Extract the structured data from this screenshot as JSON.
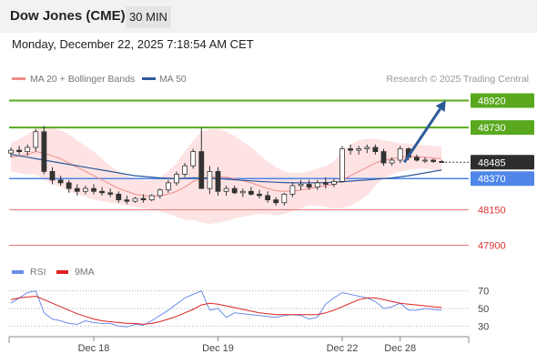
{
  "header": {
    "title": "Dow Jones (CME)",
    "timeframe": "30 MIN",
    "datetime": "Monday, December 22, 2025 7:18:54 AM CET"
  },
  "colors": {
    "resistance": "#5aa81e",
    "support": "#4f86e8",
    "bollinger_band": "#fde3e3",
    "ma20": "#f28b8b",
    "ma50": "#2e5a9a",
    "pivot": "#2d2d2d",
    "target_levels": "#e87878",
    "arrow": "#2e5a9a",
    "rsi": "#6a8ee8",
    "rsi_ma": "#dd2222"
  },
  "chart_data": [
    {
      "type": "candlestick",
      "legend": [
        "MA 20 + Bollinger Bands",
        "MA 50"
      ],
      "legend_position": "top-left",
      "credit": "Research © 2025 Trading Central",
      "ylim": [
        47820,
        49000
      ],
      "levels": [
        {
          "value": 48920,
          "label": "48920",
          "kind": "resistance"
        },
        {
          "value": 48730,
          "label": "48730",
          "kind": "resistance"
        },
        {
          "value": 48485,
          "label": "48485",
          "kind": "pivot"
        },
        {
          "value": 48370,
          "label": "48370",
          "kind": "support"
        },
        {
          "value": 48150,
          "label": "48150",
          "kind": "target"
        },
        {
          "value": 47900,
          "label": "47900",
          "kind": "target"
        }
      ],
      "forecast_arrow": {
        "from_bar": 47.5,
        "from": 48485,
        "to_bar": 52.5,
        "to": 48920
      },
      "x_bars": 53,
      "bars": [
        [
          48550,
          48590,
          48520,
          48570
        ],
        [
          48570,
          48600,
          48540,
          48560
        ],
        [
          48560,
          48610,
          48530,
          48590
        ],
        [
          48590,
          48720,
          48560,
          48700
        ],
        [
          48700,
          48740,
          48400,
          48420
        ],
        [
          48420,
          48450,
          48330,
          48360
        ],
        [
          48360,
          48390,
          48320,
          48340
        ],
        [
          48340,
          48360,
          48270,
          48300
        ],
        [
          48300,
          48330,
          48250,
          48280
        ],
        [
          48280,
          48320,
          48260,
          48300
        ],
        [
          48300,
          48330,
          48260,
          48280
        ],
        [
          48280,
          48310,
          48250,
          48270
        ],
        [
          48270,
          48300,
          48240,
          48260
        ],
        [
          48260,
          48280,
          48200,
          48220
        ],
        [
          48220,
          48250,
          48190,
          48210
        ],
        [
          48210,
          48240,
          48200,
          48230
        ],
        [
          48230,
          48260,
          48200,
          48220
        ],
        [
          48220,
          48260,
          48210,
          48250
        ],
        [
          48250,
          48300,
          48230,
          48290
        ],
        [
          48290,
          48360,
          48270,
          48340
        ],
        [
          48340,
          48420,
          48320,
          48400
        ],
        [
          48400,
          48480,
          48380,
          48460
        ],
        [
          48460,
          48580,
          48440,
          48560
        ],
        [
          48560,
          48730,
          48300,
          48300
        ],
        [
          48300,
          48460,
          48260,
          48420
        ],
        [
          48420,
          48450,
          48250,
          48280
        ],
        [
          48280,
          48320,
          48250,
          48300
        ],
        [
          48300,
          48320,
          48260,
          48270
        ],
        [
          48270,
          48300,
          48240,
          48280
        ],
        [
          48280,
          48310,
          48250,
          48260
        ],
        [
          48260,
          48290,
          48230,
          48250
        ],
        [
          48250,
          48280,
          48200,
          48220
        ],
        [
          48220,
          48240,
          48180,
          48200
        ],
        [
          48200,
          48270,
          48180,
          48260
        ],
        [
          48260,
          48340,
          48240,
          48320
        ],
        [
          48320,
          48360,
          48290,
          48330
        ],
        [
          48330,
          48360,
          48290,
          48310
        ],
        [
          48310,
          48360,
          48290,
          48340
        ],
        [
          48340,
          48380,
          48300,
          48330
        ],
        [
          48330,
          48370,
          48310,
          48350
        ],
        [
          48350,
          48600,
          48340,
          48580
        ],
        [
          48580,
          48610,
          48540,
          48570
        ],
        [
          48570,
          48600,
          48540,
          48580
        ],
        [
          48580,
          48610,
          48550,
          48590
        ],
        [
          48590,
          48610,
          48540,
          48560
        ],
        [
          48560,
          48580,
          48460,
          48480
        ],
        [
          48480,
          48520,
          48460,
          48500
        ],
        [
          48500,
          48600,
          48480,
          48580
        ],
        [
          48580,
          48590,
          48500,
          48520
        ],
        [
          48520,
          48540,
          48490,
          48500
        ],
        [
          48500,
          48520,
          48480,
          48500
        ],
        [
          48500,
          48510,
          48480,
          48490
        ],
        [
          48490,
          48500,
          48480,
          48485
        ]
      ],
      "ma20": [
        48520,
        48530,
        48540,
        48560,
        48550,
        48530,
        48510,
        48480,
        48450,
        48420,
        48390,
        48360,
        48330,
        48300,
        48280,
        48260,
        48250,
        48245,
        48250,
        48260,
        48280,
        48310,
        48350,
        48370,
        48380,
        48385,
        48380,
        48370,
        48355,
        48340,
        48320,
        48300,
        48285,
        48280,
        48282,
        48290,
        48300,
        48310,
        48320,
        48330,
        48360,
        48390,
        48420,
        48450,
        48480,
        48500,
        48510,
        48520,
        48525,
        48525,
        48520,
        48515,
        48510
      ],
      "ma50": [
        48540,
        48530,
        48520,
        48510,
        48500,
        48490,
        48480,
        48470,
        48460,
        48450,
        48440,
        48430,
        48420,
        48410,
        48400,
        48390,
        48385,
        48380,
        48375,
        48372,
        48370,
        48372,
        48375,
        48375,
        48373,
        48370,
        48366,
        48362,
        48358,
        48354,
        48350,
        48347,
        48344,
        48342,
        48340,
        48340,
        48340,
        48341,
        48342,
        48344,
        48348,
        48352,
        48356,
        48360,
        48365,
        48370,
        48375,
        48382,
        48390,
        48400,
        48410,
        48420,
        48430
      ],
      "bb_upper": [
        48620,
        48650,
        48680,
        48720,
        48740,
        48730,
        48710,
        48680,
        48640,
        48600,
        48560,
        48510,
        48460,
        48420,
        48390,
        48370,
        48360,
        48360,
        48380,
        48420,
        48480,
        48560,
        48640,
        48700,
        48720,
        48720,
        48700,
        48670,
        48630,
        48590,
        48540,
        48490,
        48450,
        48420,
        48410,
        48410,
        48420,
        48440,
        48460,
        48490,
        48560,
        48610,
        48640,
        48650,
        48650,
        48640,
        48630,
        48620,
        48615,
        48610,
        48605,
        48600,
        48595
      ],
      "bb_lower": [
        48420,
        48410,
        48400,
        48400,
        48360,
        48330,
        48310,
        48280,
        48260,
        48240,
        48220,
        48210,
        48200,
        48190,
        48180,
        48170,
        48160,
        48150,
        48140,
        48120,
        48100,
        48080,
        48080,
        48060,
        48050,
        48060,
        48070,
        48090,
        48100,
        48110,
        48120,
        48120,
        48110,
        48120,
        48140,
        48160,
        48180,
        48180,
        48170,
        48160,
        48160,
        48180,
        48210,
        48250,
        48320,
        48370,
        48400,
        48420,
        48430,
        48440,
        48440,
        48430,
        48430
      ],
      "x_tick_labels": [
        {
          "bar": 10,
          "label": "Dec 18"
        },
        {
          "bar": 25,
          "label": "Dec 19"
        },
        {
          "bar": 40,
          "label": "Dec 22"
        },
        {
          "bar": 47,
          "label": "Dec 28"
        }
      ]
    },
    {
      "type": "line",
      "legend": [
        "RSI",
        "9MA"
      ],
      "legend_position": "top-left",
      "ylim": [
        20,
        80
      ],
      "y_ticks": [
        70,
        50,
        30
      ],
      "series": [
        {
          "name": "RSI",
          "values": [
            56,
            62,
            68,
            70,
            45,
            38,
            36,
            33,
            32,
            36,
            34,
            33,
            33,
            30,
            29,
            32,
            31,
            36,
            42,
            48,
            55,
            62,
            66,
            70,
            48,
            50,
            40,
            45,
            44,
            43,
            42,
            41,
            40,
            42,
            43,
            42,
            38,
            40,
            55,
            62,
            68,
            66,
            64,
            62,
            58,
            50,
            52,
            56,
            48,
            48,
            50,
            49,
            48
          ]
        },
        {
          "name": "9MA",
          "values": [
            60,
            62,
            63,
            64,
            60,
            56,
            52,
            48,
            44,
            41,
            38,
            36,
            35,
            34,
            33,
            33,
            32,
            33,
            35,
            38,
            41,
            45,
            49,
            54,
            56,
            55,
            53,
            51,
            49,
            47,
            45,
            44,
            43,
            43,
            43,
            43,
            43,
            43,
            45,
            48,
            52,
            56,
            60,
            62,
            62,
            60,
            58,
            56,
            55,
            54,
            53,
            52,
            51
          ]
        }
      ]
    }
  ]
}
